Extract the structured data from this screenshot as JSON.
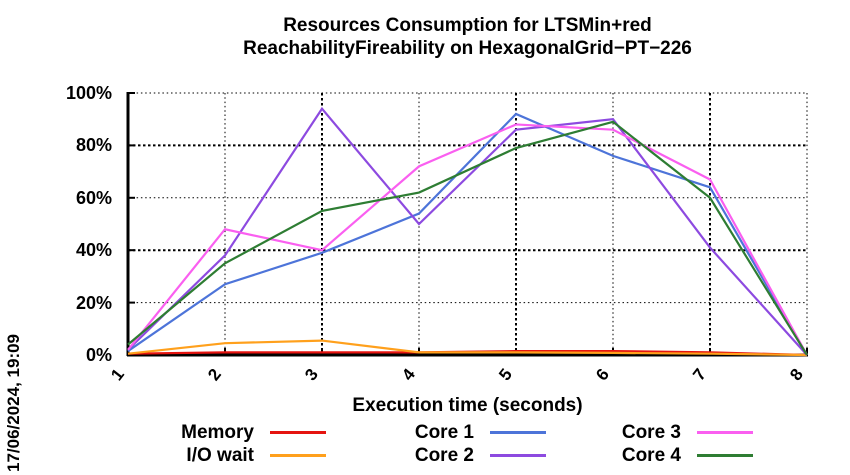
{
  "header": {
    "title_line1": "Resources Consumption for LTSMin+red",
    "title_line2": "ReachabilityFireability on HexagonalGrid−PT−226"
  },
  "timestamp": "17/06/2024, 19:09",
  "chart_data": {
    "type": "line",
    "title": "Resources Consumption for LTSMin+red ReachabilityFireability on HexagonalGrid−PT−226",
    "xlabel": "Execution time (seconds)",
    "ylabel": "",
    "x": [
      1,
      2,
      3,
      4,
      5,
      6,
      7,
      8
    ],
    "xtick_labels": [
      "1",
      "2",
      "3",
      "4",
      "5",
      "6",
      "7",
      "8"
    ],
    "ytick_labels": [
      "0%",
      "20%",
      "40%",
      "60%",
      "80%",
      "100%"
    ],
    "ylim": [
      0,
      100
    ],
    "xlim": [
      1,
      8
    ],
    "grid": true,
    "legend_position": "bottom",
    "series": [
      {
        "name": "Memory",
        "color": "#e51410",
        "values": [
          0.5,
          1.0,
          1.0,
          1.0,
          1.5,
          1.5,
          1.0,
          0
        ]
      },
      {
        "name": "I/O wait",
        "color": "#ffa01c",
        "values": [
          0.5,
          4.5,
          5.5,
          1.0,
          1.0,
          0.8,
          0.5,
          0
        ]
      },
      {
        "name": "Core 1",
        "color": "#4d74d9",
        "values": [
          1.5,
          27,
          39,
          54,
          92,
          76,
          64,
          0
        ]
      },
      {
        "name": "Core 2",
        "color": "#8d4ae0",
        "values": [
          2,
          38,
          94,
          50,
          86,
          90,
          41,
          0
        ]
      },
      {
        "name": "Core 3",
        "color": "#fa5ff0",
        "values": [
          2,
          48,
          40,
          72,
          88,
          86,
          67,
          0
        ]
      },
      {
        "name": "Core 4",
        "color": "#2e7d33",
        "values": [
          4,
          35,
          55,
          62,
          79,
          89,
          60,
          0
        ]
      }
    ],
    "legend_columns": [
      [
        "Memory",
        "I/O wait"
      ],
      [
        "Core 1",
        "Core 2"
      ],
      [
        "Core 3",
        "Core 4"
      ]
    ]
  }
}
